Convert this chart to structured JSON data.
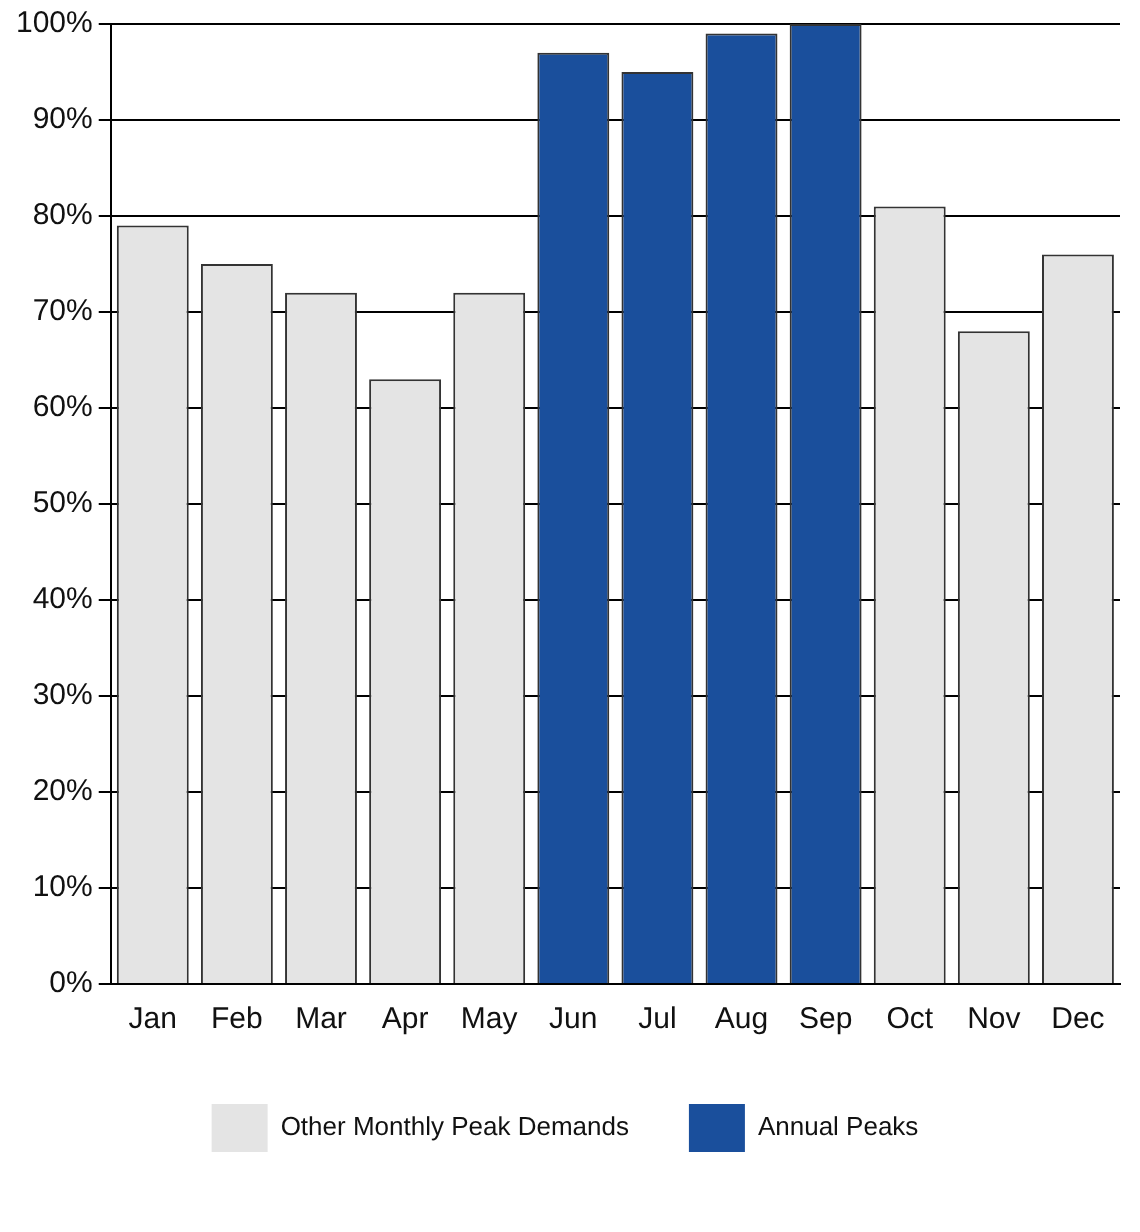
{
  "chart_data": {
    "type": "bar",
    "categories": [
      "Jan",
      "Feb",
      "Mar",
      "Apr",
      "May",
      "Jun",
      "Jul",
      "Aug",
      "Sep",
      "Oct",
      "Nov",
      "Dec"
    ],
    "series": [
      {
        "name": "Other Monthly Peak Demands",
        "color": "#e4e4e4",
        "values": [
          79,
          75,
          72,
          63,
          72,
          null,
          null,
          null,
          null,
          81,
          68,
          76
        ]
      },
      {
        "name": "Annual Peaks",
        "color": "#1a4f9c",
        "values": [
          null,
          null,
          null,
          null,
          null,
          97,
          95,
          99,
          100,
          null,
          null,
          null
        ]
      }
    ],
    "ylim": [
      0,
      100
    ],
    "yticks": [
      {
        "value": 0,
        "label": "0%"
      },
      {
        "value": 10,
        "label": "10%"
      },
      {
        "value": 20,
        "label": "20%"
      },
      {
        "value": 30,
        "label": "30%"
      },
      {
        "value": 40,
        "label": "40%"
      },
      {
        "value": 50,
        "label": "50%"
      },
      {
        "value": 60,
        "label": "60%"
      },
      {
        "value": 70,
        "label": "70%"
      },
      {
        "value": 80,
        "label": "80%"
      },
      {
        "value": 90,
        "label": "90%"
      },
      {
        "value": 100,
        "label": "100%"
      }
    ],
    "grid": "y",
    "legend": "bottom"
  }
}
